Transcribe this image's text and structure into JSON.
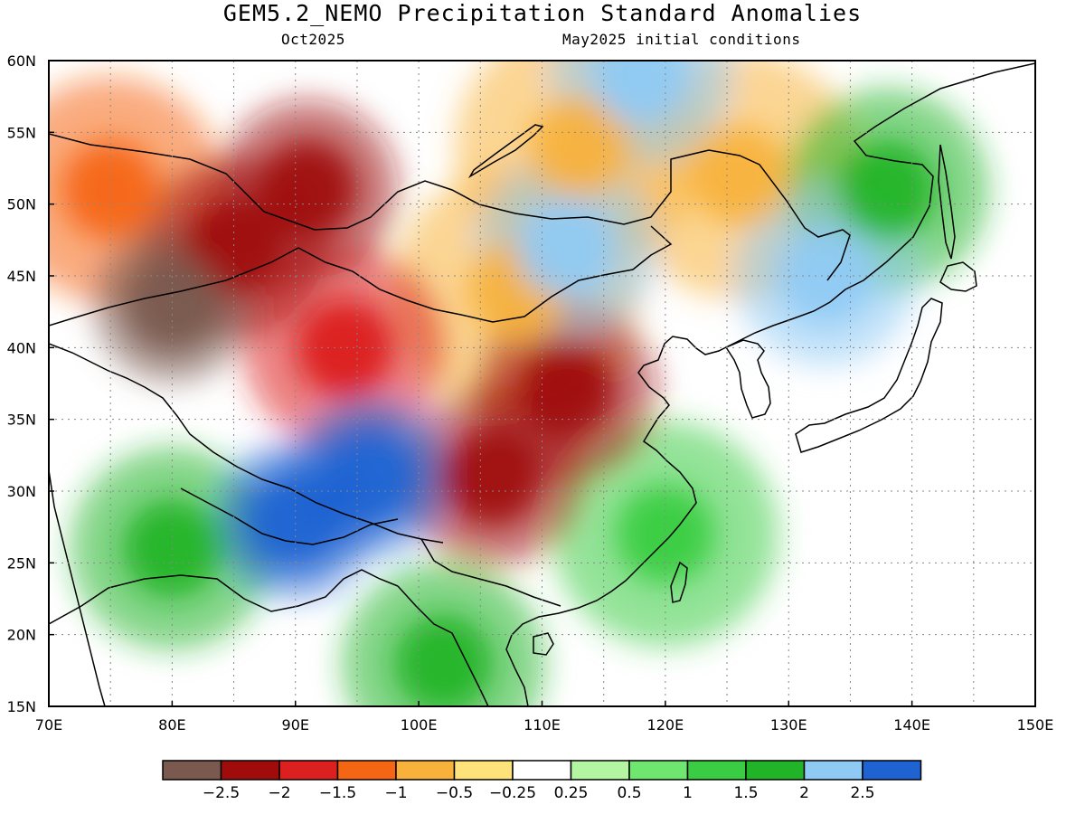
{
  "header": {
    "title": "GEM5.2_NEMO Precipitation Standard Anomalies",
    "valid_month": "Oct2025",
    "initial_conditions": "May2025 initial conditions"
  },
  "map": {
    "lon_range": [
      70,
      150
    ],
    "lat_range": [
      15,
      60
    ],
    "lon_ticks": [
      "70E",
      "80E",
      "90E",
      "100E",
      "110E",
      "120E",
      "130E",
      "140E",
      "150E"
    ],
    "lat_ticks": [
      "15N",
      "20N",
      "25N",
      "30N",
      "35N",
      "40N",
      "45N",
      "50N",
      "55N",
      "60N"
    ]
  },
  "legend": {
    "colors": [
      "#7a5a4e",
      "#a00c0c",
      "#dc2020",
      "#f56614",
      "#f8b23c",
      "#fde37a",
      "#ffffff",
      "#b4f5a2",
      "#6fe670",
      "#3acc42",
      "#22b428",
      "#8fcaf4",
      "#1f63d2"
    ],
    "labels": [
      "−2.5",
      "−2",
      "−1.5",
      "−1",
      "−0.5",
      "−0.25",
      "0.25",
      "0.5",
      "1",
      "1.5",
      "2",
      "2.5"
    ]
  },
  "chart_data": {
    "type": "heatmap",
    "variable": "Precipitation standard anomaly",
    "anomaly_regions": [
      {
        "lon": 80,
        "lat": 43,
        "value": -2.5
      },
      {
        "lon": 85,
        "lat": 47,
        "value": -2
      },
      {
        "lon": 91,
        "lat": 51,
        "value": -2
      },
      {
        "lon": 112,
        "lat": 37,
        "value": -2
      },
      {
        "lon": 106,
        "lat": 31,
        "value": -2
      },
      {
        "lon": 94,
        "lat": 40,
        "value": -1.5
      },
      {
        "lon": 75,
        "lat": 51,
        "value": -1
      },
      {
        "lon": 108,
        "lat": 44,
        "value": -0.5
      },
      {
        "lon": 113,
        "lat": 54,
        "value": -0.5
      },
      {
        "lon": 126,
        "lat": 52,
        "value": -0.5
      },
      {
        "lon": 96,
        "lat": 31,
        "value": 2.5
      },
      {
        "lon": 90,
        "lat": 28,
        "value": 2.5
      },
      {
        "lon": 112,
        "lat": 47,
        "value": 2
      },
      {
        "lon": 133,
        "lat": 45,
        "value": 2
      },
      {
        "lon": 118,
        "lat": 59,
        "value": 2
      },
      {
        "lon": 80,
        "lat": 26,
        "value": 1.5
      },
      {
        "lon": 102,
        "lat": 18,
        "value": 1.5
      },
      {
        "lon": 138,
        "lat": 51,
        "value": 1.5
      },
      {
        "lon": 120,
        "lat": 27,
        "value": 1
      }
    ]
  }
}
